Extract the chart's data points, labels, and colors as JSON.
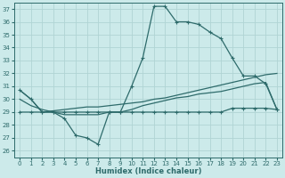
{
  "xlabel": "Humidex (Indice chaleur)",
  "xlim": [
    -0.5,
    23.5
  ],
  "ylim": [
    25.5,
    37.5
  ],
  "yticks": [
    26,
    27,
    28,
    29,
    30,
    31,
    32,
    33,
    34,
    35,
    36,
    37
  ],
  "xticks": [
    0,
    1,
    2,
    3,
    4,
    5,
    6,
    7,
    8,
    9,
    10,
    11,
    12,
    13,
    14,
    15,
    16,
    17,
    18,
    19,
    20,
    21,
    22,
    23
  ],
  "bg_color": "#cceaea",
  "grid_color": "#b0d4d4",
  "line_color": "#2e6b6b",
  "line1_y": [
    30.7,
    30.0,
    29.0,
    29.0,
    28.5,
    27.2,
    27.0,
    26.5,
    29.0,
    29.0,
    31.0,
    33.2,
    37.2,
    37.2,
    36.0,
    36.0,
    35.8,
    35.2,
    34.7,
    33.2,
    31.8,
    31.8,
    31.2,
    29.2
  ],
  "line2_y": [
    29.0,
    29.0,
    29.0,
    29.0,
    29.0,
    29.0,
    29.0,
    29.0,
    29.0,
    29.0,
    29.0,
    29.0,
    29.0,
    29.0,
    29.0,
    29.0,
    29.0,
    29.0,
    29.0,
    29.3,
    29.3,
    29.3,
    29.3,
    29.2
  ],
  "line3_y": [
    30.7,
    30.0,
    29.0,
    29.1,
    29.2,
    29.3,
    29.4,
    29.4,
    29.5,
    29.6,
    29.7,
    29.8,
    30.0,
    30.1,
    30.3,
    30.5,
    30.7,
    30.9,
    31.1,
    31.3,
    31.5,
    31.7,
    31.9,
    32.0
  ],
  "line4_y": [
    30.0,
    29.5,
    29.2,
    29.0,
    28.8,
    28.8,
    28.8,
    28.8,
    29.0,
    29.0,
    29.2,
    29.5,
    29.7,
    29.9,
    30.1,
    30.2,
    30.4,
    30.5,
    30.6,
    30.8,
    31.0,
    31.2,
    31.3,
    29.2
  ]
}
